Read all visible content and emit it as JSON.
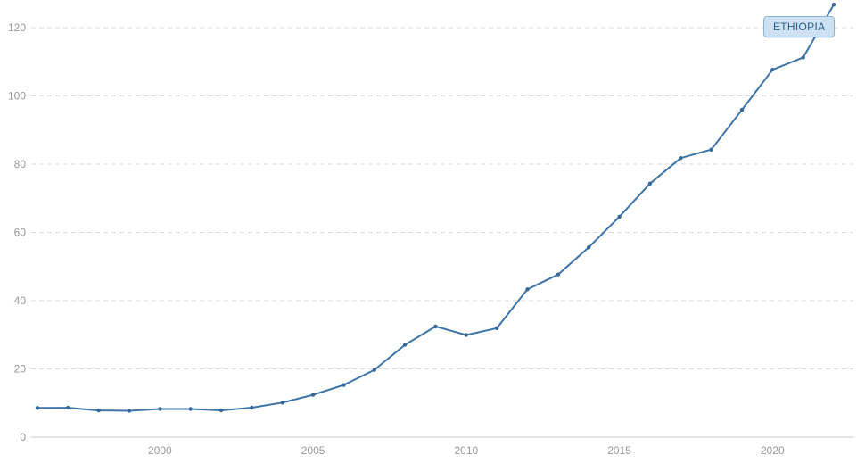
{
  "chart_data": {
    "type": "line",
    "title": "",
    "series_label": "ETHIOPIA",
    "x": [
      1996,
      1997,
      1998,
      1999,
      2000,
      2001,
      2002,
      2003,
      2004,
      2005,
      2006,
      2007,
      2008,
      2009,
      2010,
      2011,
      2012,
      2013,
      2014,
      2015,
      2016,
      2017,
      2018,
      2019,
      2020,
      2021,
      2022
    ],
    "values": [
      8.55,
      8.59,
      7.82,
      7.7,
      8.24,
      8.23,
      7.85,
      8.62,
      10.13,
      12.4,
      15.28,
      19.71,
      27.07,
      32.44,
      29.93,
      31.95,
      43.31,
      47.65,
      55.61,
      64.59,
      74.3,
      81.77,
      84.27,
      95.91,
      107.66,
      111.27,
      126.78
    ],
    "xticks": [
      2000,
      2005,
      2010,
      2015,
      2020
    ],
    "yticks": [
      0,
      20,
      40,
      60,
      80,
      100,
      120
    ],
    "ylim": [
      0,
      130
    ],
    "xlabel": "",
    "ylabel": "",
    "grid": "horizontal-dashed",
    "legend_position": "top-right-badge"
  },
  "colors": {
    "line": "#3d74a8",
    "point": "#35689b",
    "grid": "#d9d9d9",
    "axis": "#c9c9c9",
    "tick_text": "#999999",
    "badge_bg": "#cee1f2",
    "badge_border": "#8cb4d6",
    "badge_text": "#27618f"
  }
}
